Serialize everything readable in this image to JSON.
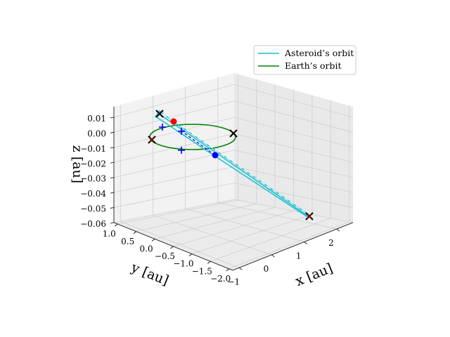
{
  "chart_data": {
    "type": "line",
    "projection": "3d",
    "axes": {
      "x": {
        "label": "x [au]",
        "ticks": [
          -1,
          0,
          1,
          2
        ],
        "tick_labels": [
          "−1",
          "0",
          "1",
          "2"
        ],
        "range": [
          -1.2,
          2.5
        ]
      },
      "y": {
        "label": "y [au]",
        "ticks": [
          1.0,
          0.5,
          0.0,
          -0.5,
          -1.0,
          -1.5,
          -2.0
        ],
        "tick_labels": [
          "1.0",
          "0.5",
          "0.0",
          "−0.5",
          "−1.0",
          "−1.5",
          "−2.0"
        ],
        "range": [
          -2.1,
          1.1
        ]
      },
      "z": {
        "label": "z [au]",
        "ticks": [
          0.01,
          0.0,
          -0.01,
          -0.02,
          -0.03,
          -0.04,
          -0.05,
          -0.06
        ],
        "tick_labels": [
          "0.01",
          "0.00",
          "−0.01",
          "−0.02",
          "−0.03",
          "−0.04",
          "−0.05",
          "−0.06"
        ],
        "range": [
          -0.06,
          0.017
        ]
      }
    },
    "grid": true,
    "legend": {
      "position": "top-right",
      "entries": [
        {
          "label": "Asteroid’s orbit",
          "color": "#17becf"
        },
        {
          "label": "Earth’s orbit",
          "color": "#008000"
        }
      ]
    },
    "colors": {
      "asteroid": "#17becf",
      "earth": "#008000",
      "marker_x": "#000000",
      "marker_plus": "#0000ff",
      "point_red": "#ff0000",
      "point_blue": "#0000ff",
      "marker_x_red_inner": "#8b0000"
    }
  }
}
